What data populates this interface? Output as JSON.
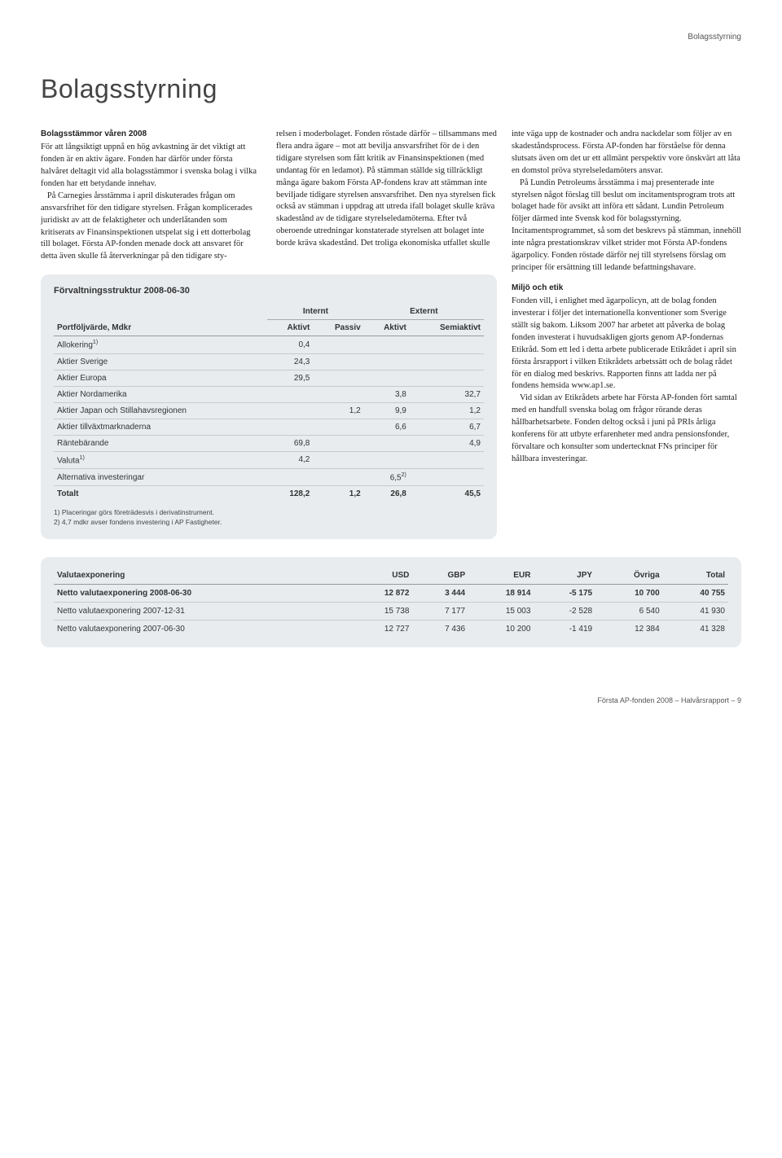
{
  "header_label": "Bolagsstyrning",
  "page_title": "Bolagsstyrning",
  "subhead1": "Bolagsstämmor våren 2008",
  "col1_text": "För att långsiktigt uppnå en hög avkastning är det viktigt att fonden är en aktiv ägare. Fonden har därför under första halvåret deltagit vid alla bolagsstämmor i svenska bolag i vilka fonden har ett betydande innehav.\n   På Carnegies årsstämma i april diskuterades frågan om ansvarsfrihet för den tidigare styrelsen. Frågan komplicerades juridiskt av att de felaktigheter och underlåtanden som kritiserats av Finansinspektionen utspelat sig i ett dotterbolag till bolaget. Första AP-fonden menade dock att ansvaret för detta även skulle få återverkningar på den tidigare sty-",
  "col2_text": "relsen i moderbolaget. Fonden röstade därför – tillsammans med flera andra ägare – mot att bevilja ansvarsfrihet för de i den tidigare styrelsen som fått kritik av Finansinspektionen (med undantag för en ledamot). På stämman ställde sig tillräckligt många ägare bakom Första AP-fondens krav att stämman inte beviljade tidigare styrelsen ansvarsfrihet. Den nya styrelsen fick också av stämman i uppdrag att utreda ifall bolaget skulle kräva skadestånd av de tidigare styrelseledamöterna. Efter två oberoende utredningar konstaterade styrelsen att bolaget inte borde kräva skadestånd. Det troliga ekonomiska utfallet skulle",
  "col3_p1": "inte väga upp de kostnader och andra nackdelar som följer av en skadeståndsprocess. Första AP-fonden har förståelse för denna slutsats även om det ur ett allmänt perspektiv vore önskvärt att låta en domstol pröva styrelseledamöters ansvar.",
  "col3_p2": "På Lundin Petroleums årsstämma i maj presenterade inte styrelsen något förslag till beslut om incitamentsprogram trots att bolaget hade för avsikt att införa ett sådant. Lundin Petroleum följer därmed inte Svensk kod för bolagsstyrning. Incitamentsprogrammet, så som det beskrevs på stämman, innehöll inte några prestationskrav vilket strider mot Första AP-fondens ägarpolicy. Fonden röstade därför nej till styrelsens förslag om principer för ersättning till ledande befattningshavare.",
  "subhead2": "Miljö och etik",
  "col3_p3": "Fonden vill, i enlighet med ägarpolicyn, att de bolag fonden investerar i följer det internationella konventioner som Sverige ställt sig bakom. Liksom 2007 har arbetet att påverka de bolag fonden investerat i huvudsakligen gjorts genom AP-fondernas Etikråd. Som ett led i detta arbete publicerade Etikrådet i april sin första årsrapport i vilken Etikrådets arbetssätt och de bolag rådet för en dialog med beskrivs. Rapporten finns att ladda ner på fondens hemsida www.ap1.se.",
  "col3_p4": "Vid sidan av Etikrådets arbete har Första AP-fonden fört samtal med en handfull svenska bolag om frågor rörande deras hållbarhetsarbete. Fonden deltog också i juni på PRIs årliga konferens för att utbyte erfarenheter med andra pensionsfonder, förvaltare och konsulter som undertecknat FNs principer för hållbara investeringar.",
  "table1": {
    "title": "Förvaltningsstruktur 2008-06-30",
    "group_headers": [
      "Internt",
      "Externt"
    ],
    "col_headers": [
      "Portföljvärde, Mdkr",
      "Aktivt",
      "Passiv",
      "Aktivt",
      "Semiaktivt"
    ],
    "rows": [
      {
        "label": "Allokering",
        "sup": "1)",
        "c1": "0,4",
        "c2": "",
        "c3": "",
        "c4": ""
      },
      {
        "label": "Aktier Sverige",
        "c1": "24,3",
        "c2": "",
        "c3": "",
        "c4": ""
      },
      {
        "label": "Aktier Europa",
        "c1": "29,5",
        "c2": "",
        "c3": "",
        "c4": ""
      },
      {
        "label": "Aktier Nordamerika",
        "c1": "",
        "c2": "",
        "c3": "3,8",
        "c4": "32,7"
      },
      {
        "label": "Aktier Japan och Stillahavsregionen",
        "c1": "",
        "c2": "1,2",
        "c3": "9,9",
        "c4": "1,2"
      },
      {
        "label": "Aktier tillväxtmarknaderna",
        "c1": "",
        "c2": "",
        "c3": "6,6",
        "c4": "6,7"
      },
      {
        "label": "Räntebärande",
        "c1": "69,8",
        "c2": "",
        "c3": "",
        "c4": "4,9"
      },
      {
        "label": "Valuta",
        "sup": "1)",
        "c1": "4,2",
        "c2": "",
        "c3": "",
        "c4": ""
      },
      {
        "label": "Alternativa investeringar",
        "c1": "",
        "c2": "",
        "c3": "6,5",
        "c3sup": "2)",
        "c4": ""
      }
    ],
    "total": {
      "label": "Totalt",
      "c1": "128,2",
      "c2": "1,2",
      "c3": "26,8",
      "c4": "45,5"
    },
    "footnote1": "1) Placeringar görs företrädesvis i derivatinstrument.",
    "footnote2": "2) 4,7 mdkr avser fondens investering i AP Fastigheter."
  },
  "table2": {
    "headers": [
      "Valutaexponering",
      "USD",
      "GBP",
      "EUR",
      "JPY",
      "Övriga",
      "Total"
    ],
    "rows": [
      {
        "bold": true,
        "cells": [
          "Netto valutaexponering 2008-06-30",
          "12 872",
          "3 444",
          "18 914",
          "-5 175",
          "10 700",
          "40 755"
        ]
      },
      {
        "bold": false,
        "cells": [
          "Netto valutaexponering 2007-12-31",
          "15 738",
          "7 177",
          "15 003",
          "-2 528",
          "6 540",
          "41 930"
        ]
      },
      {
        "bold": false,
        "cells": [
          "Netto valutaexponering 2007-06-30",
          "12 727",
          "7 436",
          "10 200",
          "-1 419",
          "12 384",
          "41 328"
        ]
      }
    ]
  },
  "footer": "Första AP-fonden 2008 – Halvårsrapport – 9"
}
